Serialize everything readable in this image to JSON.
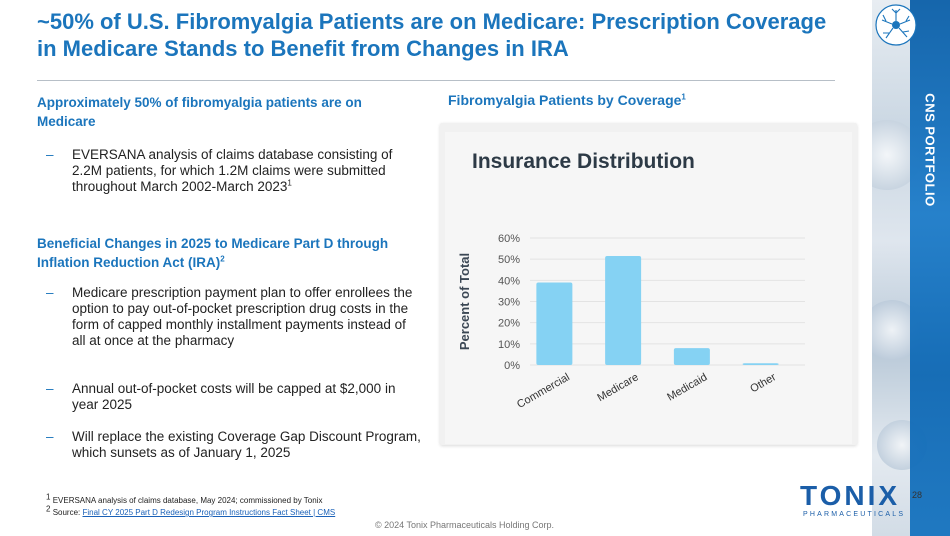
{
  "title": "~50% of U.S. Fibromyalgia Patients are on Medicare: Prescription Coverage in Medicare Stands to Benefit from Changes in IRA",
  "sidebar": {
    "label": "CNS PORTFOLIO"
  },
  "left": {
    "section1_heading": "Approximately 50% of fibromyalgia patients are on Medicare",
    "section1_bullets": [
      "EVERSANA analysis of claims database consisting of 2.2M patients, for which 1.2M claims were submitted throughout March 2002-March 2023"
    ],
    "section1_bullet_sup": "1",
    "section2_heading": "Beneficial  Changes in 2025 to Medicare Part D through Inflation Reduction Act (IRA)",
    "section2_heading_sup": "2",
    "section2_bullets": [
      "Medicare prescription payment plan to offer enrollees the option to pay out-of-pocket prescription drug costs in the form of capped monthly installment payments instead of all at once at the pharmacy",
      "Annual out-of-pocket costs will be capped at $2,000 in year 2025",
      "Will replace the existing Coverage Gap Discount Program, which sunsets as of January 1, 2025"
    ],
    "dash": "–"
  },
  "chart_heading": "Fibromyalgia Patients by Coverage",
  "chart_heading_sup": "1",
  "chart_data": {
    "type": "bar",
    "title": "Insurance Distribution",
    "ylabel": "Percent of Total",
    "xlabel": "",
    "categories": [
      "Commercial",
      "Medicare",
      "Medicaid",
      "Other"
    ],
    "values": [
      39,
      51.5,
      8,
      0.8
    ],
    "ylim": [
      0,
      60
    ],
    "yticks": [
      0,
      10,
      20,
      30,
      40,
      50,
      60
    ],
    "ytick_labels": [
      "0%",
      "10%",
      "20%",
      "30%",
      "40%",
      "50%",
      "60%"
    ],
    "grid": true,
    "bar_color": "#85d2f3"
  },
  "footnotes": {
    "f1_sup": "1",
    "f1_text": "EVERSANA analysis of claims database, May 2024; commissioned by Tonix",
    "f2_sup": "2",
    "f2_label": "Source: ",
    "f2_link": "Final CY 2025 Part D Redesign Program Instructions Fact Sheet | CMS"
  },
  "copyright": "© 2024 Tonix Pharmaceuticals Holding Corp.",
  "page_number": "28",
  "logo": {
    "word": "TONIX",
    "sub": "PHARMACEUTICALS"
  },
  "colors": {
    "accent": "#1b75bc",
    "text": "#222222",
    "bar": "#85d2f3"
  }
}
